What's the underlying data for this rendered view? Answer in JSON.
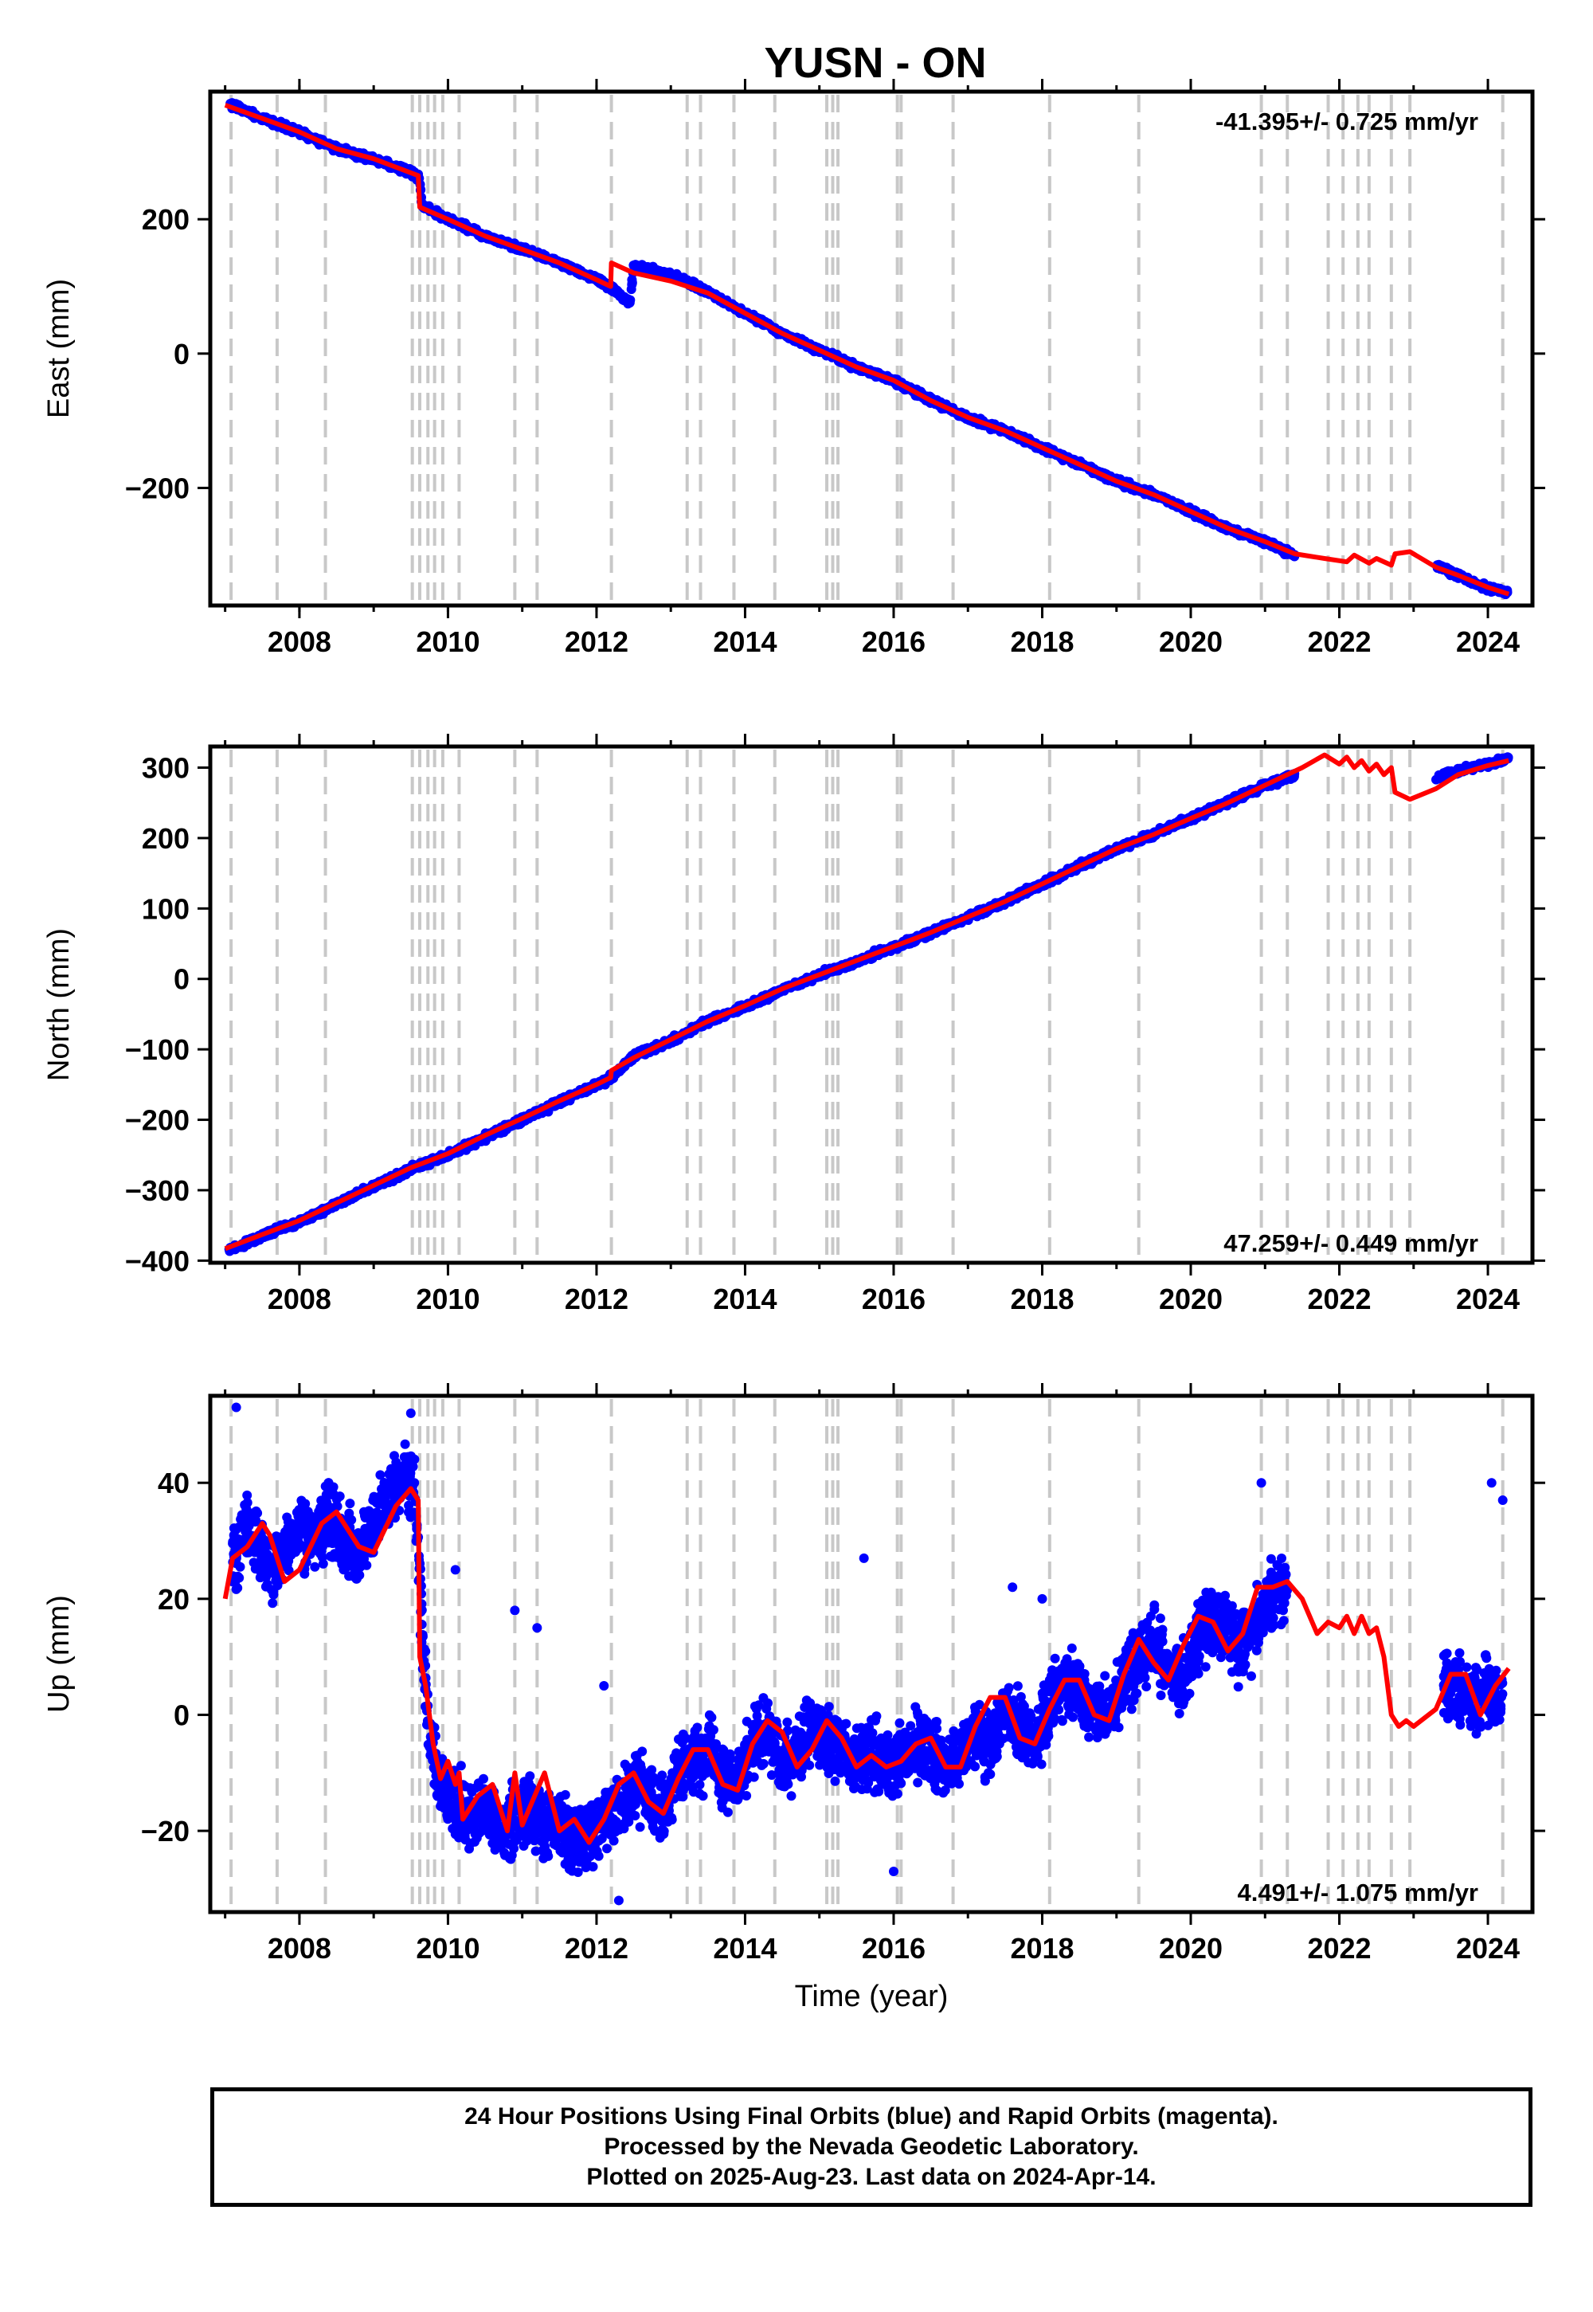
{
  "title": "YUSN - ON",
  "colors": {
    "final_orbits": "#0000ff",
    "model_fit": "#ff0000",
    "event_lines": "#c8c8c8"
  },
  "chart_data": [
    {
      "type": "scatter",
      "ylabel": "East (mm)",
      "xlabel": "",
      "xlim": [
        2006.8,
        2024.6
      ],
      "ylim": [
        -375,
        390
      ],
      "xticks": [
        2008,
        2010,
        2012,
        2014,
        2016,
        2018,
        2020,
        2022,
        2024
      ],
      "yticks": [
        -200,
        0,
        200
      ],
      "rate_text": "-41.395+/- 0.725 mm/yr",
      "rate_position": "top-right",
      "grid": false,
      "series": [
        {
          "kind": "final_orbits_points",
          "x": [
            2007.05,
            2007.5,
            2008.0,
            2008.5,
            2009.0,
            2009.5,
            2009.62,
            2009.65,
            2010.0,
            2010.5,
            2011.0,
            2011.5,
            2012.0,
            2012.2,
            2012.45,
            2012.5,
            2013.0,
            2013.5,
            2014.0,
            2014.5,
            2015.0,
            2015.5,
            2016.0,
            2016.5,
            2017.0,
            2017.5,
            2018.0,
            2018.5,
            2019.0,
            2019.5,
            2020.0,
            2020.5,
            2021.0,
            2021.4,
            2023.3,
            2023.6,
            2024.0,
            2024.28
          ],
          "y": [
            372,
            350,
            330,
            305,
            290,
            270,
            260,
            220,
            200,
            175,
            155,
            135,
            110,
            98,
            75,
            130,
            118,
            92,
            60,
            30,
            5,
            -20,
            -40,
            -70,
            -95,
            -115,
            -140,
            -165,
            -190,
            -210,
            -235,
            -260,
            -280,
            -300,
            -315,
            -330,
            -350,
            -355
          ]
        },
        {
          "kind": "model_fit_line",
          "x": [
            2007.0,
            2007.5,
            2008.0,
            2008.5,
            2009.0,
            2009.6,
            2009.62,
            2010.0,
            2010.5,
            2011.0,
            2011.5,
            2012.0,
            2012.19,
            2012.2,
            2012.5,
            2013.0,
            2013.5,
            2014.0,
            2014.5,
            2015.0,
            2015.5,
            2016.0,
            2016.5,
            2017.0,
            2017.5,
            2018.0,
            2018.5,
            2019.0,
            2019.5,
            2020.0,
            2020.5,
            2021.0,
            2021.4,
            2021.8,
            2022.1,
            2022.2,
            2022.4,
            2022.5,
            2022.7,
            2022.75,
            2022.95,
            2023.3,
            2023.6,
            2024.0,
            2024.28
          ],
          "y": [
            370,
            350,
            330,
            305,
            290,
            265,
            218,
            200,
            175,
            155,
            135,
            110,
            100,
            135,
            120,
            108,
            90,
            60,
            30,
            5,
            -20,
            -40,
            -70,
            -95,
            -115,
            -140,
            -165,
            -190,
            -210,
            -235,
            -260,
            -280,
            -298,
            -305,
            -310,
            -300,
            -312,
            -305,
            -315,
            -298,
            -295,
            -318,
            -330,
            -348,
            -358
          ]
        }
      ]
    },
    {
      "type": "scatter",
      "ylabel": "North (mm)",
      "xlabel": "",
      "xlim": [
        2006.8,
        2024.6
      ],
      "ylim": [
        -403,
        330
      ],
      "xticks": [
        2008,
        2010,
        2012,
        2014,
        2016,
        2018,
        2020,
        2022,
        2024
      ],
      "yticks": [
        -400,
        -300,
        -200,
        -100,
        0,
        100,
        200,
        300
      ],
      "rate_text": "47.259+/- 0.449 mm/yr",
      "rate_position": "bottom-right",
      "grid": false,
      "series": [
        {
          "kind": "final_orbits_points",
          "x": [
            2007.05,
            2007.5,
            2008.0,
            2008.5,
            2009.0,
            2009.5,
            2010.0,
            2010.5,
            2011.0,
            2011.5,
            2012.0,
            2012.2,
            2012.5,
            2013.0,
            2013.5,
            2014.0,
            2014.5,
            2015.0,
            2015.5,
            2016.0,
            2016.5,
            2017.0,
            2017.5,
            2018.0,
            2018.5,
            2019.0,
            2019.5,
            2020.0,
            2020.5,
            2021.0,
            2021.4,
            2023.3,
            2023.6,
            2024.0,
            2024.28
          ],
          "y": [
            -385,
            -365,
            -345,
            -320,
            -295,
            -270,
            -250,
            -225,
            -200,
            -175,
            -150,
            -140,
            -110,
            -88,
            -60,
            -40,
            -15,
            5,
            25,
            45,
            65,
            88,
            110,
            135,
            160,
            185,
            205,
            228,
            250,
            275,
            290,
            285,
            295,
            305,
            312
          ]
        },
        {
          "kind": "model_fit_line",
          "x": [
            2007.0,
            2007.5,
            2008.0,
            2008.5,
            2009.0,
            2009.5,
            2010.0,
            2010.5,
            2011.0,
            2011.5,
            2012.0,
            2012.19,
            2012.2,
            2012.5,
            2013.0,
            2013.5,
            2014.0,
            2014.5,
            2015.0,
            2015.5,
            2016.0,
            2016.5,
            2017.0,
            2017.5,
            2018.0,
            2018.5,
            2019.0,
            2019.5,
            2020.0,
            2020.5,
            2021.0,
            2021.5,
            2021.8,
            2022.0,
            2022.1,
            2022.2,
            2022.3,
            2022.4,
            2022.5,
            2022.6,
            2022.7,
            2022.75,
            2022.95,
            2023.3,
            2023.6,
            2024.0,
            2024.28
          ],
          "y": [
            -383,
            -363,
            -343,
            -318,
            -293,
            -268,
            -248,
            -222,
            -198,
            -173,
            -150,
            -140,
            -130,
            -112,
            -86,
            -60,
            -38,
            -14,
            6,
            26,
            46,
            66,
            88,
            110,
            135,
            160,
            185,
            205,
            228,
            250,
            275,
            300,
            318,
            305,
            315,
            300,
            310,
            295,
            305,
            290,
            300,
            265,
            255,
            270,
            290,
            303,
            310
          ]
        }
      ]
    },
    {
      "type": "scatter",
      "ylabel": "Up (mm)",
      "xlabel": "Time (year)",
      "xlim": [
        2006.8,
        2024.6
      ],
      "ylim": [
        -34,
        55
      ],
      "xticks": [
        2008,
        2010,
        2012,
        2014,
        2016,
        2018,
        2020,
        2022,
        2024
      ],
      "yticks": [
        -20,
        0,
        20,
        40
      ],
      "rate_text": "4.491+/- 1.075 mm/yr",
      "rate_position": "bottom-right",
      "grid": false,
      "series": [
        {
          "kind": "final_orbits_points",
          "x": [
            2007.1,
            2007.2,
            2007.35,
            2007.5,
            2007.65,
            2007.8,
            2008.0,
            2008.2,
            2008.4,
            2008.6,
            2008.8,
            2009.0,
            2009.2,
            2009.4,
            2009.55,
            2009.65,
            2009.75,
            2009.9,
            2010.1,
            2010.3,
            2010.5,
            2010.7,
            2010.9,
            2011.1,
            2011.3,
            2011.5,
            2011.7,
            2011.9,
            2012.1,
            2012.3,
            2012.5,
            2012.7,
            2012.9,
            2013.1,
            2013.3,
            2013.5,
            2013.7,
            2013.9,
            2014.1,
            2014.3,
            2014.5,
            2014.7,
            2014.9,
            2015.1,
            2015.3,
            2015.5,
            2015.7,
            2015.9,
            2016.1,
            2016.3,
            2016.5,
            2016.7,
            2016.9,
            2017.1,
            2017.3,
            2017.5,
            2017.7,
            2017.9,
            2018.1,
            2018.3,
            2018.5,
            2018.7,
            2018.9,
            2019.1,
            2019.3,
            2019.5,
            2019.7,
            2019.9,
            2020.1,
            2020.3,
            2020.5,
            2020.7,
            2020.9,
            2021.1,
            2021.3,
            2023.4,
            2023.6,
            2023.8,
            2024.0,
            2024.2
          ],
          "y": [
            25,
            30,
            33,
            28,
            24,
            29,
            33,
            30,
            34,
            30,
            28,
            33,
            38,
            42,
            40,
            15,
            -5,
            -12,
            -15,
            -18,
            -16,
            -20,
            -18,
            -15,
            -20,
            -18,
            -22,
            -20,
            -18,
            -17,
            -12,
            -14,
            -16,
            -10,
            -8,
            -6,
            -10,
            -12,
            -5,
            -3,
            -8,
            -6,
            -2,
            -4,
            -6,
            -9,
            -6,
            -10,
            -8,
            -5,
            -6,
            -9,
            -7,
            -3,
            -5,
            0,
            -2,
            -5,
            2,
            5,
            4,
            1,
            -1,
            6,
            10,
            12,
            8,
            6,
            14,
            16,
            14,
            12,
            16,
            20,
            22,
            5,
            4,
            2,
            4,
            3
          ],
          "outliers_x": [
            2007.15,
            2009.5,
            2010.1,
            2010.9,
            2011.2,
            2012.1,
            2012.3,
            2015.6,
            2016.0,
            2017.6,
            2018.0,
            2020.95,
            2024.05,
            2024.2
          ],
          "outliers_y": [
            53,
            52,
            25,
            18,
            15,
            5,
            -32,
            27,
            -27,
            22,
            20,
            40,
            40,
            37
          ]
        },
        {
          "kind": "model_fit_line",
          "x": [
            2007.0,
            2007.1,
            2007.3,
            2007.5,
            2007.6,
            2007.8,
            2008.0,
            2008.3,
            2008.5,
            2008.8,
            2009.0,
            2009.3,
            2009.5,
            2009.6,
            2009.62,
            2009.7,
            2009.8,
            2009.9,
            2010.0,
            2010.1,
            2010.15,
            2010.2,
            2010.4,
            2010.6,
            2010.8,
            2010.9,
            2011.0,
            2011.2,
            2011.3,
            2011.5,
            2011.7,
            2011.9,
            2012.1,
            2012.3,
            2012.5,
            2012.7,
            2012.9,
            2013.1,
            2013.3,
            2013.5,
            2013.7,
            2013.9,
            2014.1,
            2014.3,
            2014.5,
            2014.7,
            2014.9,
            2015.1,
            2015.3,
            2015.5,
            2015.7,
            2015.9,
            2016.1,
            2016.3,
            2016.5,
            2016.7,
            2016.9,
            2017.1,
            2017.3,
            2017.5,
            2017.7,
            2017.9,
            2018.1,
            2018.3,
            2018.5,
            2018.7,
            2018.9,
            2019.1,
            2019.3,
            2019.5,
            2019.7,
            2019.9,
            2020.1,
            2020.3,
            2020.5,
            2020.7,
            2020.9,
            2021.1,
            2021.3,
            2021.5,
            2021.7,
            2021.85,
            2022.0,
            2022.1,
            2022.2,
            2022.3,
            2022.4,
            2022.5,
            2022.6,
            2022.7,
            2022.8,
            2022.9,
            2023.0,
            2023.3,
            2023.5,
            2023.7,
            2023.9,
            2024.1,
            2024.28
          ],
          "y": [
            20,
            27,
            29,
            33,
            31,
            23,
            25,
            33,
            35,
            29,
            28,
            36,
            39,
            37,
            10,
            5,
            -5,
            -11,
            -8,
            -12,
            -10,
            -18,
            -14,
            -12,
            -20,
            -10,
            -19,
            -13,
            -10,
            -20,
            -18,
            -22,
            -18,
            -12,
            -10,
            -15,
            -17,
            -11,
            -6,
            -6,
            -12,
            -13,
            -5,
            -1,
            -3,
            -9,
            -6,
            -1,
            -4,
            -9,
            -7,
            -9,
            -8,
            -5,
            -4,
            -9,
            -9,
            -2,
            3,
            3,
            -4,
            -5,
            1,
            6,
            6,
            0,
            -1,
            7,
            13,
            9,
            6,
            12,
            17,
            16,
            11,
            14,
            22,
            22,
            23,
            20,
            14,
            16,
            15,
            17,
            14,
            17,
            14,
            15,
            10,
            0,
            -2,
            -1,
            -2,
            1,
            7,
            7,
            0,
            5,
            8
          ]
        }
      ]
    }
  ],
  "vertical_event_lines": [
    2007.08,
    2007.7,
    2008.35,
    2009.52,
    2009.62,
    2009.73,
    2009.82,
    2009.93,
    2010.15,
    2010.9,
    2011.2,
    2012.2,
    2013.22,
    2013.4,
    2013.85,
    2014.4,
    2015.1,
    2015.18,
    2015.25,
    2016.05,
    2016.1,
    2016.8,
    2018.1,
    2019.3,
    2020.95,
    2021.3,
    2021.85,
    2022.05,
    2022.25,
    2022.4,
    2022.7,
    2022.95,
    2024.2
  ],
  "caption": {
    "line1": "24 Hour Positions Using Final Orbits (blue) and Rapid Orbits (magenta).",
    "line2": "Processed by the Nevada Geodetic Laboratory.",
    "line3": "Plotted on 2025-Aug-23. Last data on 2024-Apr-14."
  }
}
